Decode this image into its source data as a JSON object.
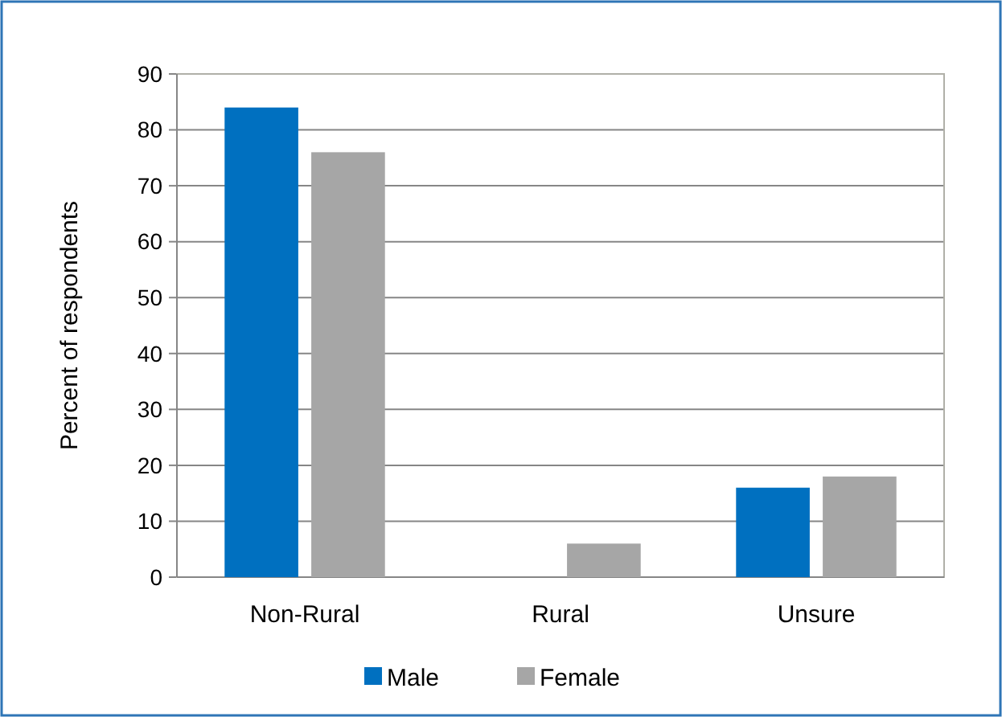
{
  "chart_data": {
    "type": "bar",
    "ylabel": "Percent of respondents",
    "categories": [
      "Non-Rural",
      "Rural",
      "Unsure"
    ],
    "series": [
      {
        "name": "Male",
        "color": "#0070c0",
        "values": [
          84,
          0,
          16
        ]
      },
      {
        "name": "Female",
        "color": "#a6a6a6",
        "values": [
          76,
          6,
          18
        ]
      }
    ],
    "ylim": [
      0,
      90
    ],
    "yticks": [
      0,
      10,
      20,
      30,
      40,
      50,
      60,
      70,
      80,
      90
    ],
    "grid": "y",
    "legend": "bottom"
  }
}
